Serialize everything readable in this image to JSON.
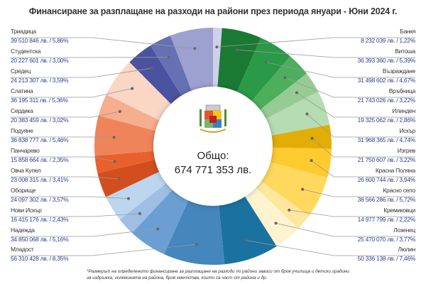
{
  "chart_data": {
    "type": "pie",
    "variant": "donut",
    "title": "Финансиране за разплащане на разходи на райони през периода януари - Юни 2024 г.",
    "total_label": "Общо:",
    "total_value": "674 771 353 лв.",
    "total": 674771353,
    "unit": "лв.",
    "series": [
      {
        "name": "Банкя",
        "value": 8232039,
        "percent": 1.22,
        "label": "8 232 039 лв. / 1,22%",
        "color": "#cfd0ea",
        "side": "right"
      },
      {
        "name": "Витоша",
        "value": 36393360,
        "percent": 5.39,
        "label": "36 393 360 лв. / 5,39%",
        "color": "#1a7a34",
        "side": "right"
      },
      {
        "name": "Възраждане",
        "value": 31498602,
        "percent": 4.67,
        "label": "31 498 602 лв. / 4,67%",
        "color": "#2a9a48",
        "side": "right"
      },
      {
        "name": "Връбница",
        "value": 21743026,
        "percent": 3.22,
        "label": "21 743 026 лв. / 3,22%",
        "color": "#4daf5e",
        "side": "right"
      },
      {
        "name": "Илинден",
        "value": 19325062,
        "percent": 2.86,
        "label": "19 325 062 лв. / 2,86%",
        "color": "#96cc94",
        "side": "right"
      },
      {
        "name": "Искър",
        "value": 31968365,
        "percent": 4.74,
        "label": "31 968 365 лв. / 4,74%",
        "color": "#b5dcb2",
        "side": "right"
      },
      {
        "name": "Изгрев",
        "value": 21750607,
        "percent": 3.22,
        "label": "21 750 607 лв. / 3,22%",
        "color": "#e2ad05",
        "side": "right"
      },
      {
        "name": "Красна Поляна",
        "value": 26600744,
        "percent": 3.94,
        "label": "26 600 744 лв. / 3,94%",
        "color": "#fdca30",
        "side": "right"
      },
      {
        "name": "Красно село",
        "value": 38566286,
        "percent": 5.72,
        "label": "38 566 286 лв. / 5,72%",
        "color": "#fed95e",
        "side": "right"
      },
      {
        "name": "Кремиковци",
        "value": 14977799,
        "percent": 2.22,
        "label": "14 977 799 лв. / 2,22%",
        "color": "#fde79c",
        "side": "right"
      },
      {
        "name": "Лозенец",
        "value": 25470070,
        "percent": 3.77,
        "label": "25 470 070 лв. / 3,77%",
        "color": "#fef3cf",
        "side": "right"
      },
      {
        "name": "Люлин",
        "value": 50336138,
        "percent": 7.46,
        "label": "50 336 138 лв. / 7,46%",
        "color": "#1a72a0",
        "side": "right"
      },
      {
        "name": "Младост",
        "value": 56310428,
        "percent": 8.35,
        "label": "56 310 428 лв. / 8,35%",
        "color": "#4586bc",
        "side": "left"
      },
      {
        "name": "Надежда",
        "value": 34850068,
        "percent": 5.16,
        "label": "34 850 068 лв. / 5,16%",
        "color": "#6b9fd3",
        "side": "left"
      },
      {
        "name": "Нови Искър",
        "value": 16415176,
        "percent": 2.43,
        "label": "16 415 176 лв. / 2,43%",
        "color": "#a0bde3",
        "side": "left"
      },
      {
        "name": "Оборище",
        "value": 24097302,
        "percent": 3.57,
        "label": "24 097 302 лв. / 3,57%",
        "color": "#bcd6f0",
        "side": "left"
      },
      {
        "name": "Овча Купел",
        "value": 23008315,
        "percent": 3.41,
        "label": "23 008 315 лв. / 3,41%",
        "color": "#d24e1e",
        "side": "left"
      },
      {
        "name": "Панчарево",
        "value": 15858664,
        "percent": 2.35,
        "label": "15 858 664 лв. / 2,35%",
        "color": "#e8612d",
        "side": "left"
      },
      {
        "name": "Подуяне",
        "value": 36838777,
        "percent": 5.46,
        "label": "36 838 777 лв. / 5,46%",
        "color": "#ef845a",
        "side": "left"
      },
      {
        "name": "Сердика",
        "value": 20383459,
        "percent": 3.02,
        "label": "20 383 459 лв. / 3,02%",
        "color": "#f5ae8e",
        "side": "left"
      },
      {
        "name": "Слатина",
        "value": 36195311,
        "percent": 5.36,
        "label": "36 195 311 лв. / 5,36%",
        "color": "#fad6c4",
        "side": "left"
      },
      {
        "name": "Средец",
        "value": 24213307,
        "percent": 3.59,
        "label": "24 213 307 лв. / 3,59%",
        "color": "#4b52a0",
        "side": "left"
      },
      {
        "name": "Студентска",
        "value": 20227601,
        "percent": 3.0,
        "label": "20 227 601 лв. / 3,00%",
        "color": "#6571b3",
        "side": "left"
      },
      {
        "name": "Триадица",
        "value": 39510846,
        "percent": 5.86,
        "label": "39 510 846 лв. / 5,86%",
        "color": "#9ca1cf",
        "side": "left"
      }
    ],
    "legend": "both-sides"
  },
  "footnote": "*Размерът на определеното финансиране за разплащане на разходи по райони зависи от броя училища и детски градини за издръжка, големината на района, броя кметства, които са част от района и др."
}
